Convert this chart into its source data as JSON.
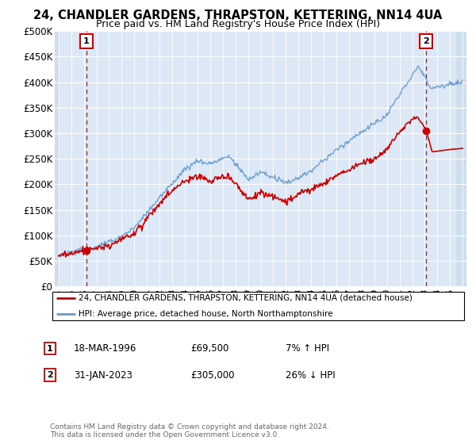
{
  "title": "24, CHANDLER GARDENS, THRAPSTON, KETTERING, NN14 4UA",
  "subtitle": "Price paid vs. HM Land Registry's House Price Index (HPI)",
  "legend_line1": "24, CHANDLER GARDENS, THRAPSTON, KETTERING, NN14 4UA (detached house)",
  "legend_line2": "HPI: Average price, detached house, North Northamptonshire",
  "transaction1_date": "18-MAR-1996",
  "transaction1_price": "£69,500",
  "transaction1_hpi": "7% ↑ HPI",
  "transaction2_date": "31-JAN-2023",
  "transaction2_price": "£305,000",
  "transaction2_hpi": "26% ↓ HPI",
  "footer": "Contains HM Land Registry data © Crown copyright and database right 2024.\nThis data is licensed under the Open Government Licence v3.0.",
  "ylim": [
    0,
    500000
  ],
  "xlim_start": 1993.7,
  "xlim_end": 2026.3,
  "hpi_color": "#6699cc",
  "price_color": "#cc0000",
  "annotation_box_color": "#cc0000",
  "point1_x": 1996.21,
  "point1_y": 69500,
  "point2_x": 2023.08,
  "point2_y": 305000,
  "plot_facecolor": "#dce8f5",
  "grid_color": "#ffffff"
}
